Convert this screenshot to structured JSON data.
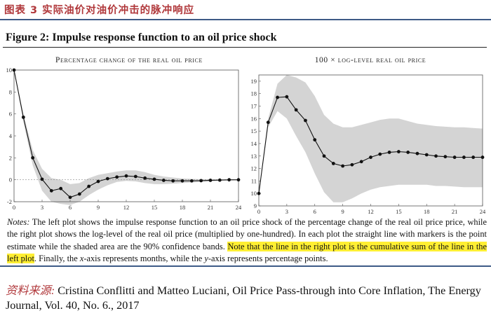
{
  "header": {
    "title": "图表 3   实际油价对油价冲击的脉冲响应",
    "figure_title": "Figure 2: Impulse response function to an oil price shock"
  },
  "chart_data": [
    {
      "type": "line",
      "title": "Percentage change of the real oil price",
      "x": [
        0,
        1,
        2,
        3,
        4,
        5,
        6,
        7,
        8,
        9,
        10,
        11,
        12,
        13,
        14,
        15,
        16,
        17,
        18,
        19,
        20,
        21,
        22,
        23,
        24
      ],
      "series": [
        {
          "values": [
            10.0,
            5.7,
            2.0,
            0.05,
            -1.0,
            -0.8,
            -1.6,
            -1.3,
            -0.6,
            -0.15,
            0.1,
            0.25,
            0.35,
            0.3,
            0.15,
            0.05,
            -0.05,
            -0.1,
            -0.1,
            -0.1,
            -0.08,
            -0.05,
            -0.03,
            0.0,
            0.0
          ]
        }
      ],
      "band_upper": [
        10.0,
        6.0,
        2.7,
        1.0,
        0.15,
        0.0,
        -0.4,
        -0.3,
        0.15,
        0.45,
        0.6,
        0.75,
        0.85,
        0.85,
        0.7,
        0.45,
        0.3,
        0.2,
        0.12,
        0.08,
        0.05,
        0.05,
        0.03,
        0.02,
        0.02
      ],
      "band_lower": [
        10.0,
        5.3,
        1.3,
        -1.0,
        -2.0,
        -2.2,
        -2.3,
        -2.0,
        -1.4,
        -0.9,
        -0.5,
        -0.2,
        -0.1,
        -0.15,
        -0.3,
        -0.4,
        -0.4,
        -0.35,
        -0.3,
        -0.25,
        -0.2,
        -0.15,
        -0.1,
        -0.08,
        -0.05
      ],
      "ylim": [
        -2,
        10
      ],
      "yticks": [
        "10",
        "8",
        "6",
        "4",
        "2",
        "0",
        "-2"
      ],
      "xticks": [
        "0",
        "3",
        "6",
        "9",
        "12",
        "15",
        "18",
        "21",
        "24"
      ],
      "grid": false
    },
    {
      "type": "line",
      "title": "100 × log-level real oil price",
      "x": [
        0,
        1,
        2,
        3,
        4,
        5,
        6,
        7,
        8,
        9,
        10,
        11,
        12,
        13,
        14,
        15,
        16,
        17,
        18,
        19,
        20,
        21,
        22,
        23,
        24
      ],
      "series": [
        {
          "values": [
            10.0,
            15.7,
            17.7,
            17.75,
            16.7,
            15.85,
            14.3,
            13.0,
            12.4,
            12.2,
            12.3,
            12.55,
            12.9,
            13.15,
            13.3,
            13.35,
            13.3,
            13.2,
            13.1,
            13.0,
            12.95,
            12.9,
            12.9,
            12.9,
            12.9
          ]
        }
      ],
      "band_upper": [
        10.0,
        16.0,
        18.8,
        19.5,
        19.3,
        18.9,
        17.8,
        16.3,
        15.6,
        15.3,
        15.3,
        15.5,
        15.7,
        15.9,
        16.0,
        16.0,
        15.8,
        15.6,
        15.5,
        15.4,
        15.35,
        15.3,
        15.3,
        15.25,
        15.2
      ],
      "band_lower": [
        10.0,
        15.3,
        16.6,
        16.0,
        14.6,
        13.3,
        11.6,
        10.1,
        9.3,
        9.3,
        9.6,
        10.0,
        10.3,
        10.5,
        10.6,
        10.7,
        10.7,
        10.7,
        10.7,
        10.6,
        10.6,
        10.55,
        10.5,
        10.5,
        10.5
      ],
      "ylim": [
        9,
        19.5
      ],
      "yticks": [
        "19",
        "18",
        "17",
        "16",
        "15",
        "14",
        "13",
        "12",
        "11",
        "10",
        "9"
      ],
      "xticks": [
        "0",
        "3",
        "6",
        "9",
        "12",
        "15",
        "18",
        "21",
        "24"
      ],
      "grid": false
    }
  ],
  "notes": {
    "label": "Notes:",
    "text_1": " The left plot shows the impulse response function to an oil price shock of the percentage change of the real oil price price, while the right plot shows the log-level of the real oil price (multiplied by one-hundred). In each plot the straight line with markers is the point estimate while the shaded area are the 90% confidence bands. ",
    "highlight": "Note that the line in the right plot is the cumulative sum of the line in the left plot",
    "text_2": ". Finally, the ",
    "x_var": "x",
    "text_3": "-axis represents months, while the ",
    "y_var": "y",
    "text_4": "-axis represents percentage points."
  },
  "source": {
    "label": "资料来源:",
    "text": " Cristina Conflitti and Matteo Luciani, Oil Price Pass-through into Core Inflation, The Energy Journal, Vol. 40, No. 6., 2017"
  },
  "colors": {
    "band": "#d4d4d4",
    "line": "#111111",
    "title_red": "#b0373a",
    "rule_blue": "#3d5a86",
    "highlight": "#ffef33"
  }
}
